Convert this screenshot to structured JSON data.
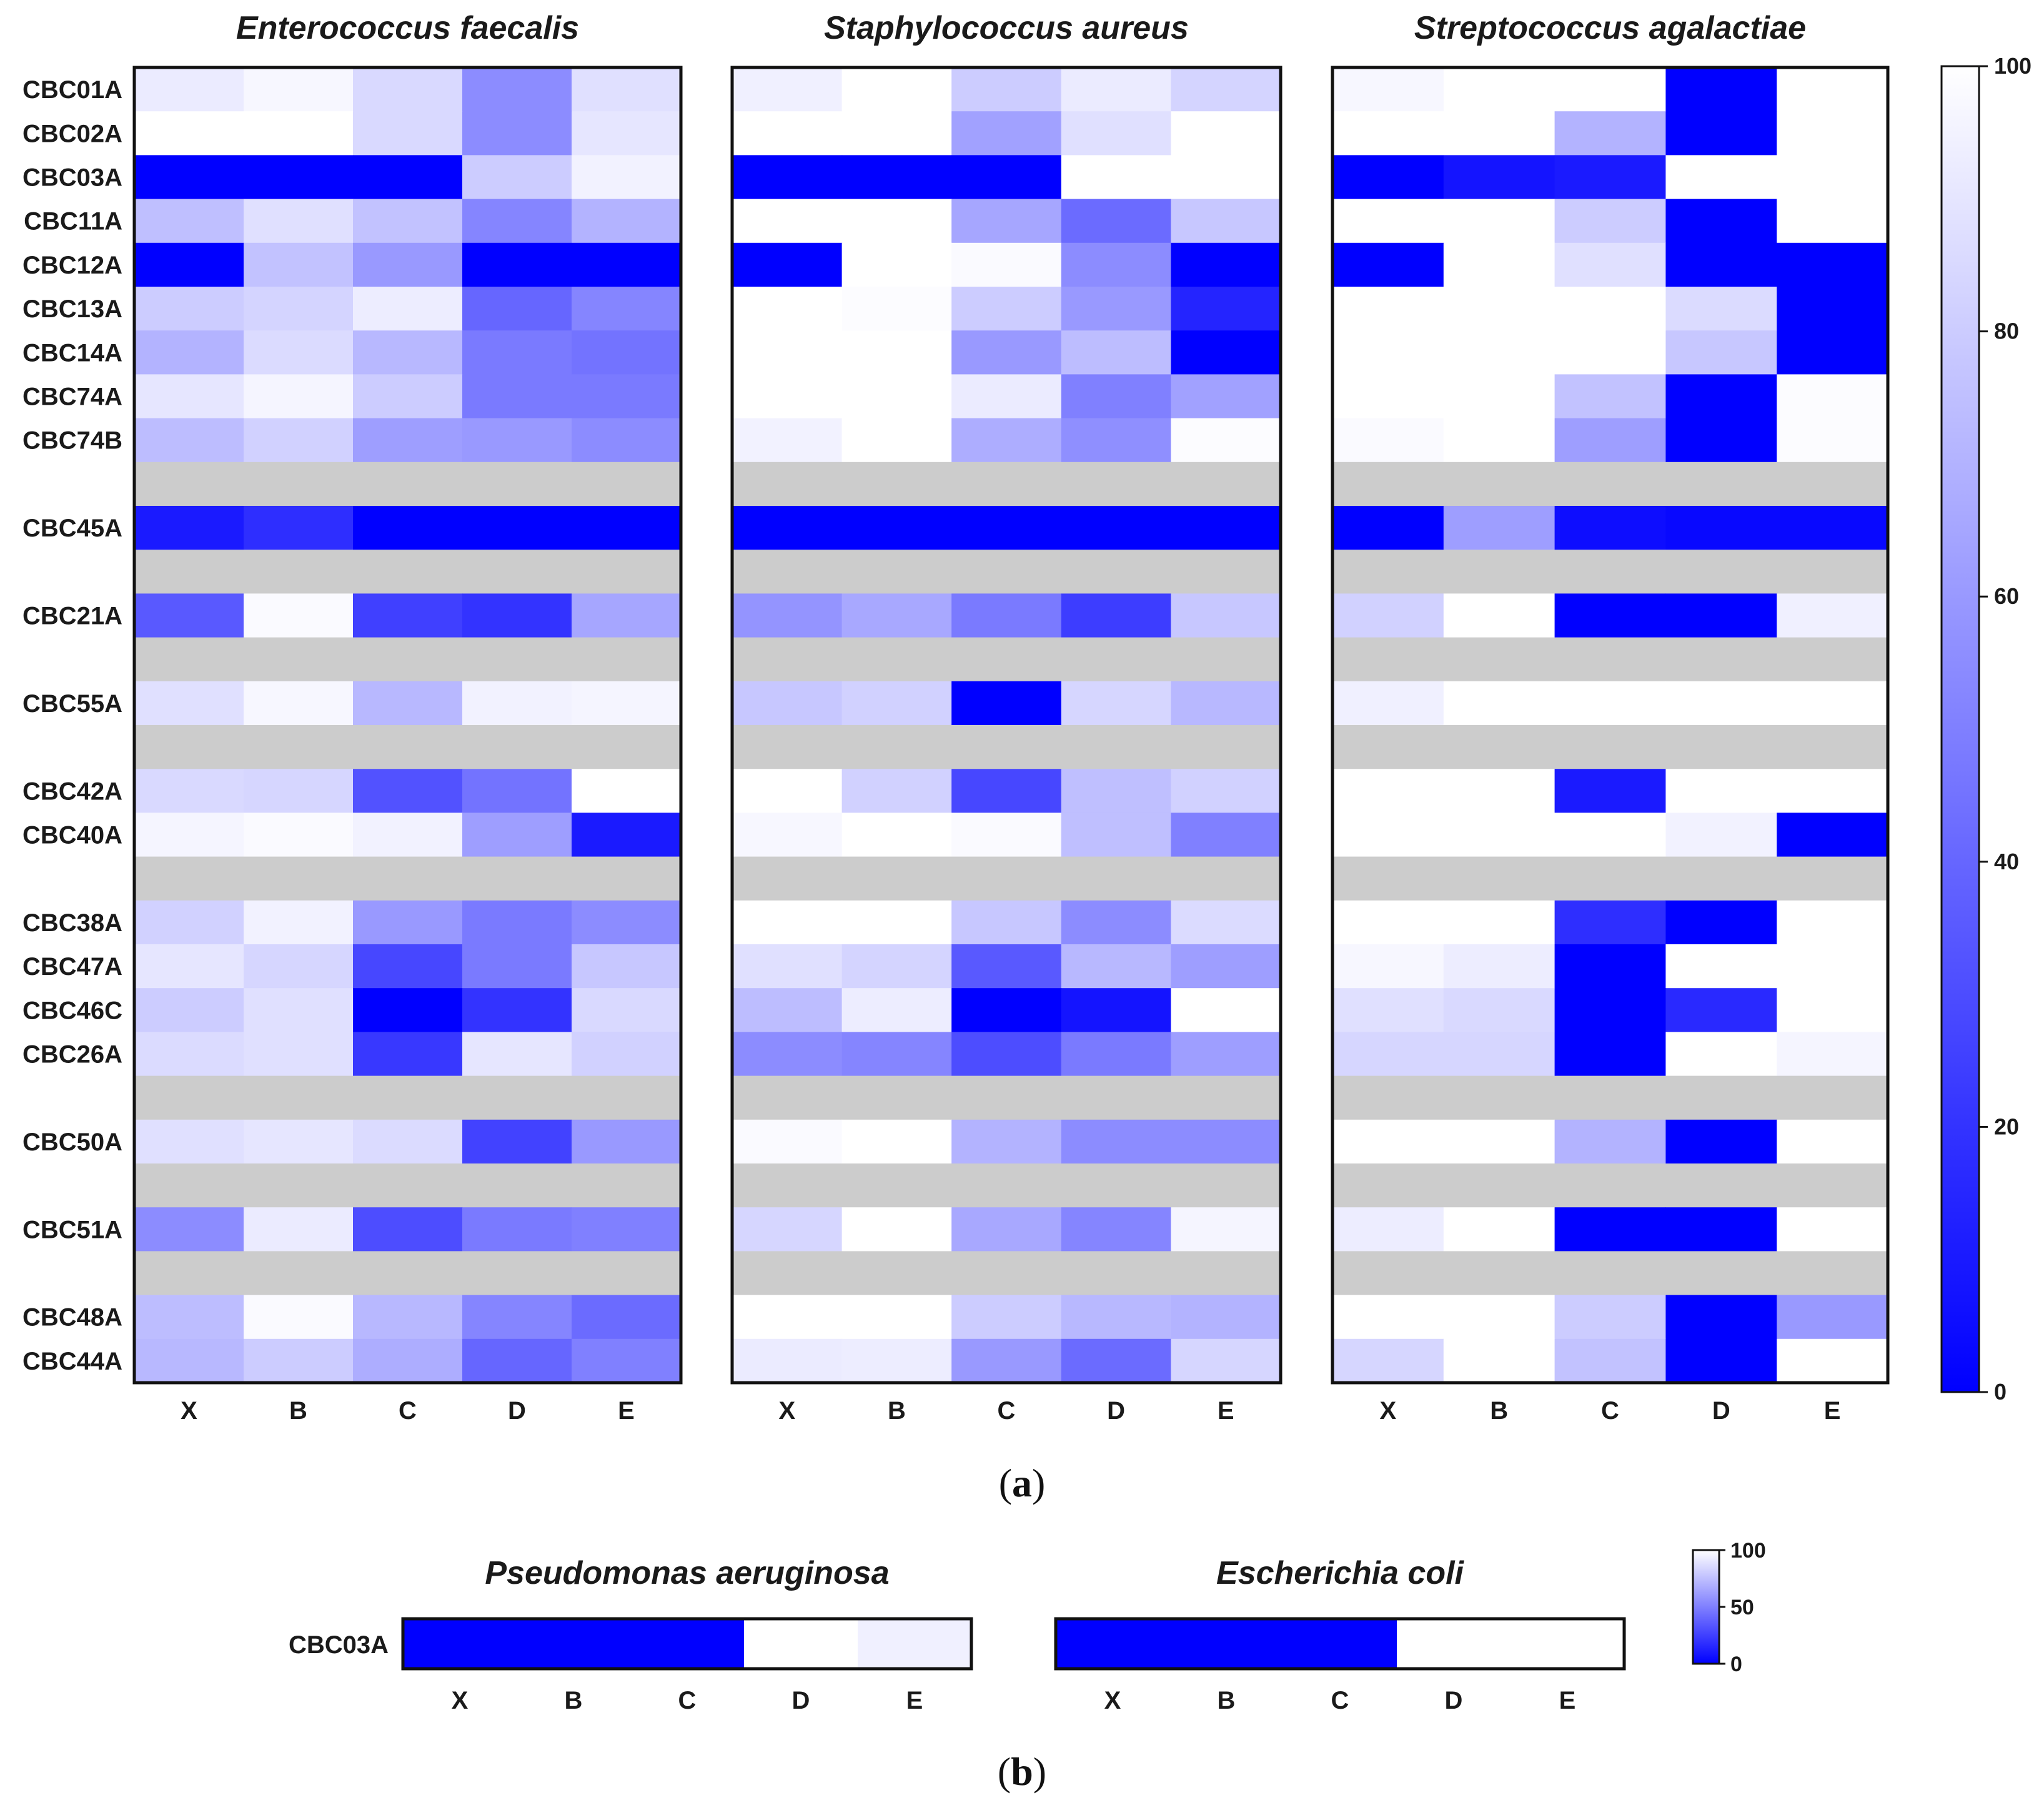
{
  "chart_data": [
    {
      "type": "heatmap",
      "panel": "a",
      "caption_letter": "a",
      "columns": [
        "X",
        "B",
        "C",
        "D",
        "E"
      ],
      "rows": [
        "CBC01A",
        "CBC02A",
        "CBC03A",
        "CBC11A",
        "CBC12A",
        "CBC13A",
        "CBC14A",
        "CBC74A",
        "CBC74B",
        "",
        "CBC45A",
        "",
        "CBC21A",
        "",
        "CBC55A",
        "",
        "CBC42A",
        "CBC40A",
        "",
        "CBC38A",
        "CBC47A",
        "CBC46C",
        "CBC26A",
        "",
        "CBC50A",
        "",
        "CBC51A",
        "",
        "CBC48A",
        "CBC44A"
      ],
      "colorbar": {
        "min": 0,
        "max": 100,
        "ticks": [
          "0",
          "20",
          "40",
          "60",
          "80",
          "100"
        ],
        "low_color": "#0000ff",
        "high_color": "#ffffff",
        "separator_color": "#cccccc"
      },
      "panels": [
        {
          "title": "Enterococcus  faecalis",
          "values": [
            [
              92,
              97,
              85,
              55,
              88
            ],
            [
              100,
              100,
              85,
              55,
              90
            ],
            [
              0,
              0,
              0,
              80,
              95
            ],
            [
              75,
              88,
              76,
              52,
              70
            ],
            [
              0,
              76,
              60,
              0,
              0
            ],
            [
              80,
              83,
              93,
              40,
              52
            ],
            [
              70,
              86,
              72,
              48,
              45
            ],
            [
              90,
              96,
              80,
              48,
              48
            ],
            [
              74,
              82,
              62,
              60,
              55
            ],
            null,
            [
              10,
              18,
              0,
              0,
              0
            ],
            null,
            [
              35,
              98,
              25,
              20,
              65
            ],
            null,
            [
              88,
              97,
              72,
              95,
              96
            ],
            null,
            [
              85,
              84,
              32,
              45,
              100
            ],
            [
              96,
              98,
              95,
              62,
              10
            ],
            null,
            [
              82,
              95,
              60,
              48,
              55
            ],
            [
              90,
              84,
              28,
              48,
              78
            ],
            [
              80,
              88,
              0,
              20,
              85
            ],
            [
              86,
              88,
              22,
              90,
              82
            ],
            null,
            [
              88,
              90,
              86,
              26,
              60
            ],
            null,
            [
              55,
              92,
              30,
              48,
              50
            ],
            null,
            [
              74,
              98,
              72,
              52,
              42
            ],
            [
              72,
              80,
              68,
              40,
              50
            ]
          ]
        },
        {
          "title": "Staphylococcus aureus",
          "values": [
            [
              94,
              100,
              80,
              92,
              83
            ],
            [
              100,
              100,
              63,
              88,
              100
            ],
            [
              0,
              0,
              0,
              100,
              100
            ],
            [
              100,
              100,
              65,
              42,
              78
            ],
            [
              0,
              100,
              98,
              55,
              0
            ],
            [
              100,
              99,
              80,
              60,
              14
            ],
            [
              100,
              100,
              60,
              74,
              0
            ],
            [
              100,
              100,
              92,
              50,
              63
            ],
            [
              95,
              100,
              68,
              56,
              99
            ],
            null,
            [
              0,
              0,
              0,
              0,
              0
            ],
            null,
            [
              58,
              66,
              48,
              24,
              78
            ],
            null,
            [
              78,
              82,
              0,
              84,
              72
            ],
            null,
            [
              100,
              82,
              28,
              75,
              82
            ],
            [
              97,
              100,
              98,
              75,
              50
            ],
            null,
            [
              100,
              100,
              78,
              55,
              86
            ],
            [
              88,
              83,
              35,
              72,
              62
            ],
            [
              74,
              93,
              0,
              8,
              100
            ],
            [
              55,
              52,
              30,
              48,
              62
            ],
            null,
            [
              98,
              100,
              70,
              55,
              55
            ],
            null,
            [
              84,
              100,
              66,
              52,
              96
            ],
            null,
            [
              100,
              100,
              80,
              72,
              70
            ],
            [
              92,
              93,
              60,
              42,
              84
            ]
          ]
        },
        {
          "title": "Streptococcus agalactiae",
          "values": [
            [
              97,
              100,
              100,
              0,
              100
            ],
            [
              100,
              100,
              70,
              0,
              100
            ],
            [
              0,
              8,
              10,
              100,
              100
            ],
            [
              100,
              100,
              80,
              0,
              100
            ],
            [
              0,
              100,
              88,
              0,
              0
            ],
            [
              100,
              100,
              100,
              86,
              0
            ],
            [
              100,
              100,
              100,
              78,
              0
            ],
            [
              100,
              100,
              76,
              0,
              99
            ],
            [
              98,
              100,
              62,
              0,
              99
            ],
            null,
            [
              0,
              62,
              5,
              3,
              3
            ],
            null,
            [
              82,
              100,
              0,
              0,
              94
            ],
            null,
            [
              94,
              100,
              100,
              100,
              100
            ],
            null,
            [
              100,
              100,
              10,
              100,
              100
            ],
            [
              100,
              100,
              100,
              95,
              0
            ],
            null,
            [
              100,
              100,
              18,
              0,
              100
            ],
            [
              97,
              93,
              0,
              100,
              100
            ],
            [
              88,
              85,
              0,
              16,
              100
            ],
            [
              84,
              84,
              0,
              100,
              96
            ],
            null,
            [
              100,
              100,
              70,
              0,
              100
            ],
            null,
            [
              93,
              100,
              0,
              0,
              100
            ],
            null,
            [
              100,
              100,
              80,
              0,
              60
            ],
            [
              84,
              100,
              76,
              0,
              100
            ]
          ]
        }
      ]
    },
    {
      "type": "heatmap",
      "panel": "b",
      "caption_letter": "b",
      "columns": [
        "X",
        "B",
        "C",
        "D",
        "E"
      ],
      "rows": [
        "CBC03A"
      ],
      "colorbar": {
        "min": 0,
        "max": 100,
        "ticks": [
          "0",
          "50",
          "100"
        ],
        "low_color": "#0000ff",
        "high_color": "#ffffff"
      },
      "panels": [
        {
          "title": "Pseudomonas aeruginosa",
          "values": [
            [
              0,
              0,
              0,
              100,
              94
            ]
          ]
        },
        {
          "title": "Escherichia coli",
          "values": [
            [
              0,
              0,
              0,
              100,
              100
            ]
          ]
        }
      ]
    }
  ]
}
